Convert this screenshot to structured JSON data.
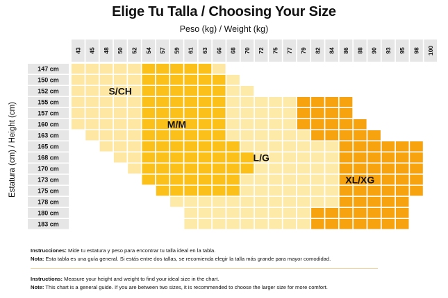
{
  "chart_data": {
    "type": "heatmap",
    "title": "Elige Tu Talla / Choosing Your Size",
    "xlabel": "Peso (kg) / Weight (kg)",
    "ylabel": "Estatura (cm) / Height (cm)",
    "x": [
      43,
      45,
      48,
      50,
      52,
      54,
      57,
      59,
      61,
      63,
      66,
      68,
      70,
      72,
      75,
      77,
      79,
      82,
      84,
      86,
      88,
      90,
      93,
      95,
      98,
      100
    ],
    "y": [
      "147 cm",
      "150 cm",
      "152 cm",
      "155 cm",
      "157 cm",
      "160 cm",
      "163 cm",
      "165 cm",
      "168 cm",
      "170 cm",
      "173 cm",
      "175 cm",
      "178 cm",
      "180 cm",
      "183 cm"
    ],
    "sizes": [
      "S/CH",
      "M/M",
      "L/G",
      "XL/XG"
    ],
    "size_colors": [
      "#fde7a3",
      "#fcc01b",
      "#fdeaa9",
      "#f7a310"
    ],
    "cells": [
      "00000111110",
      "000001111112",
      "0000011111122",
      "00000111111222223333",
      "00000111111222223333",
      "000001111112222233333",
      "_000011111122222233333",
      "__00011111112222222333333",
      "___0011111111222222333333",
      "____011111111222222333333",
      "_____11111112222222333333",
      "______1111112222222333333",
      "_______22222222222233333",
      "________2222222223333333",
      "________2222222223333333"
    ],
    "labels": [
      {
        "text": "S/CH",
        "x": 50,
        "y": "152 cm"
      },
      {
        "text": "M/M",
        "x": 59,
        "y": "160 cm"
      },
      {
        "text": "L/G",
        "x": 72,
        "y": "168 cm"
      },
      {
        "text": "XL/XG",
        "x": 88,
        "y": "173 cm"
      }
    ]
  },
  "notes": {
    "instructions_es_label": "Instrucciones:",
    "instructions_es_text": " Mide tu estatura y peso para encontrar tu talla ideal en la tabla.",
    "note_es_label": "Nota:",
    "note_es_text": " Esta tabla es una guía general. Si estás entre dos tallas, se recomienda elegir la talla más grande para mayor comodidad.",
    "instructions_en_label": "Instructions:",
    "instructions_en_text": " Measure your height and weight to find your ideal size in the chart.",
    "note_en_label": "Note:",
    "note_en_text": " This chart is a general guide. If you are between two sizes, it is recommended to choose the larger size for more comfort."
  }
}
